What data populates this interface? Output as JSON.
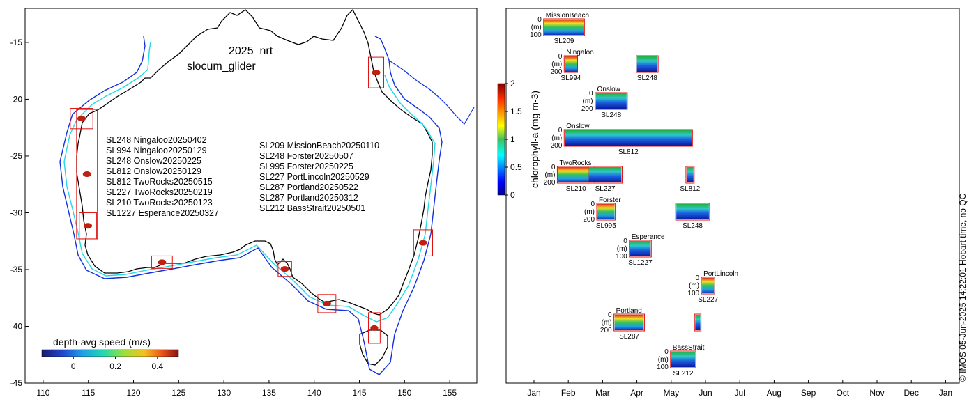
{
  "chart_data": [
    {
      "type": "map",
      "title": "2025_nrt",
      "subtitle": "slocum_glider",
      "xlim": [
        108,
        158
      ],
      "ylim": [
        -45,
        -12
      ],
      "xticks": [
        110,
        115,
        120,
        125,
        130,
        135,
        140,
        145,
        150,
        155
      ],
      "yticks": [
        -15,
        -20,
        -25,
        -30,
        -35,
        -40,
        -45
      ],
      "colorbar": {
        "label": "depth-avg speed (m/s)",
        "range": [
          -0.15,
          0.5
        ],
        "ticks": [
          0,
          0.2,
          0.4
        ],
        "tick_labels": [
          "0",
          "0.2",
          "0.4"
        ]
      },
      "deployments_west": [
        "SL248 Ningaloo20250402",
        "SL994 Ningaloo20250129",
        "SL248 Onslow20250225",
        "SL812 Onslow20250129",
        "SL812 TwoRocks20250515",
        "SL227 TwoRocks20250219",
        "SL210 TwoRocks20250123",
        "SL1227 Esperance20250327"
      ],
      "deployments_east": [
        "SL209 MissionBeach20250110",
        "SL248 Forster20250507",
        "SL995 Forster20250225",
        "SL227 PortLincoln20250529",
        "SL287 Portland20250522",
        "SL287 Portland20250312",
        "SL212 BassStrait20250501"
      ],
      "boxes": [
        {
          "lon": [
            113.0,
            115.5
          ],
          "lat": [
            -22.6,
            -20.8
          ]
        },
        {
          "lon": [
            113.7,
            116.0
          ],
          "lat": [
            -32.3,
            -20.9
          ]
        },
        {
          "lon": [
            114.0,
            115.9
          ],
          "lat": [
            -32.3,
            -30.0
          ]
        },
        {
          "lon": [
            122.0,
            124.3
          ],
          "lat": [
            -34.9,
            -33.8
          ]
        },
        {
          "lon": [
            136.0,
            137.5
          ],
          "lat": [
            -35.6,
            -34.3
          ]
        },
        {
          "lon": [
            140.4,
            142.4
          ],
          "lat": [
            -38.8,
            -37.2
          ]
        },
        {
          "lon": [
            146.0,
            147.3
          ],
          "lat": [
            -41.5,
            -38.8
          ]
        },
        {
          "lon": [
            146.0,
            147.7
          ],
          "lat": [
            -19.0,
            -16.3
          ]
        },
        {
          "lon": [
            151.0,
            153.1
          ],
          "lat": [
            -33.8,
            -31.5
          ]
        }
      ]
    },
    {
      "type": "heatmap-timeline",
      "xlabel": "",
      "xticks": [
        "Jan",
        "Feb",
        "Mar",
        "Apr",
        "May",
        "Jun",
        "Jul",
        "Aug",
        "Sep",
        "Oct",
        "Nov",
        "Dec",
        "Jan"
      ],
      "colorbar": {
        "label": "chlorophyll-a (mg m-3)",
        "range": [
          0,
          2
        ],
        "ticks": [
          0,
          0.5,
          1,
          1.5,
          2
        ],
        "tick_labels": [
          "0",
          "0.5",
          "1",
          "1.5",
          "2"
        ]
      },
      "depth_unit": "(m)",
      "panels": [
        {
          "site": "MissionBeach",
          "glider": "SL209",
          "start_month": 0.3,
          "end_month": 1.45,
          "max_depth": "100",
          "row": 0
        },
        {
          "site": "Ningaloo",
          "glider": "SL994",
          "start_month": 0.9,
          "end_month": 1.25,
          "max_depth": "200",
          "row": 1
        },
        {
          "site": "",
          "glider": "SL248",
          "start_month": 3.0,
          "end_month": 3.6,
          "max_depth": "",
          "row": 1
        },
        {
          "site": "Onslow",
          "glider": "SL248",
          "start_month": 1.8,
          "end_month": 2.7,
          "max_depth": "200",
          "row": 2
        },
        {
          "site": "Onslow",
          "glider": "SL812",
          "start_month": 0.9,
          "end_month": 4.6,
          "max_depth": "200",
          "row": 3
        },
        {
          "site": "TwoRocks",
          "glider": "SL210",
          "start_month": 0.7,
          "end_month": 1.75,
          "max_depth": "200",
          "row": 4
        },
        {
          "site": "",
          "glider": "SL227",
          "start_month": 1.6,
          "end_month": 2.55,
          "max_depth": "",
          "row": 4
        },
        {
          "site": "",
          "glider": "SL812",
          "start_month": 4.45,
          "end_month": 4.65,
          "max_depth": "",
          "row": 4
        },
        {
          "site": "Forster",
          "glider": "SL995",
          "start_month": 1.85,
          "end_month": 2.35,
          "max_depth": "200",
          "row": 5
        },
        {
          "site": "",
          "glider": "SL248",
          "start_month": 4.15,
          "end_month": 5.1,
          "max_depth": "",
          "row": 5
        },
        {
          "site": "Esperance",
          "glider": "SL1227",
          "start_month": 2.8,
          "end_month": 3.4,
          "max_depth": "100",
          "row": 6
        },
        {
          "site": "PortLincoln",
          "glider": "SL227",
          "start_month": 4.9,
          "end_month": 5.25,
          "max_depth": "100",
          "row": 7
        },
        {
          "site": "Portland",
          "glider": "SL287",
          "start_month": 2.35,
          "end_month": 3.2,
          "max_depth": "200",
          "row": 8
        },
        {
          "site": "",
          "glider": "",
          "start_month": 4.7,
          "end_month": 4.85,
          "max_depth": "",
          "row": 8
        },
        {
          "site": "BassStrait",
          "glider": "SL212",
          "start_month": 4.0,
          "end_month": 4.7,
          "max_depth": "100",
          "row": 9
        }
      ]
    }
  ],
  "footer": "© IMOS 05-Jun-2025 14:22:01 Hobart time, no QC"
}
